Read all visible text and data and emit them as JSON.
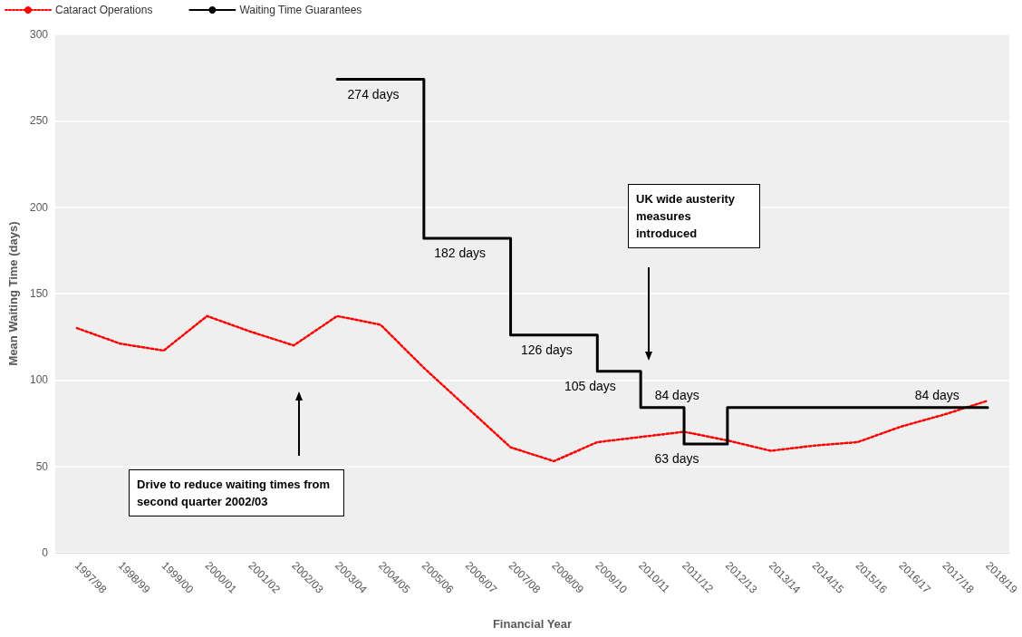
{
  "chart_data": {
    "type": "line",
    "xlabel": "Financial Year",
    "ylabel": "Mean Waiting Time (days)",
    "categories": [
      "1997/98",
      "1998/99",
      "1999/00",
      "2000/01",
      "2001/02",
      "2002/03",
      "2003/04",
      "2004/05",
      "2005/06",
      "2006/07",
      "2007/08",
      "2008/09",
      "2009/10",
      "2010/11",
      "2011/12",
      "2012/13",
      "2013/14",
      "2014/15",
      "2015/16",
      "2016/17",
      "2017/18",
      "2018/19"
    ],
    "series": [
      {
        "name": "Cataract Operations",
        "color": "#ff0000",
        "line_style": "dotted",
        "values": [
          130,
          121,
          117,
          137,
          128,
          120,
          137,
          132,
          107,
          84,
          61,
          53,
          64,
          67,
          70,
          65,
          59,
          62,
          64,
          73,
          80,
          88
        ]
      },
      {
        "name": "Waiting Time Guarantees",
        "type": "step",
        "color": "#000000",
        "line_style": "solid",
        "values": [
          null,
          null,
          null,
          null,
          null,
          null,
          274,
          274,
          182,
          182,
          126,
          126,
          105,
          84,
          63,
          84,
          84,
          84,
          84,
          84,
          84,
          84
        ]
      }
    ],
    "ylim": [
      0,
      300
    ],
    "yticks": [
      0,
      50,
      100,
      150,
      200,
      250,
      300
    ],
    "grid": "y",
    "legend": "top left",
    "marker": "none",
    "annotations": [
      {
        "text": "274 days",
        "x": "2004/05",
        "y": 274
      },
      {
        "text": "182 days",
        "x": "2006/07",
        "y": 182
      },
      {
        "text": "126 days",
        "x": "2008/09",
        "y": 126
      },
      {
        "text": "105 days",
        "x": "2009/10",
        "y": 105
      },
      {
        "text": "84 days",
        "x": "2010/11",
        "y": 84
      },
      {
        "text": "63 days",
        "x": "2011/12",
        "y": 63
      },
      {
        "text": "84 days",
        "x": "2016/17",
        "y": 84
      },
      "Drive to reduce waiting times from second quarter 2002/03",
      "UK wide austerity measures introduced"
    ]
  }
}
